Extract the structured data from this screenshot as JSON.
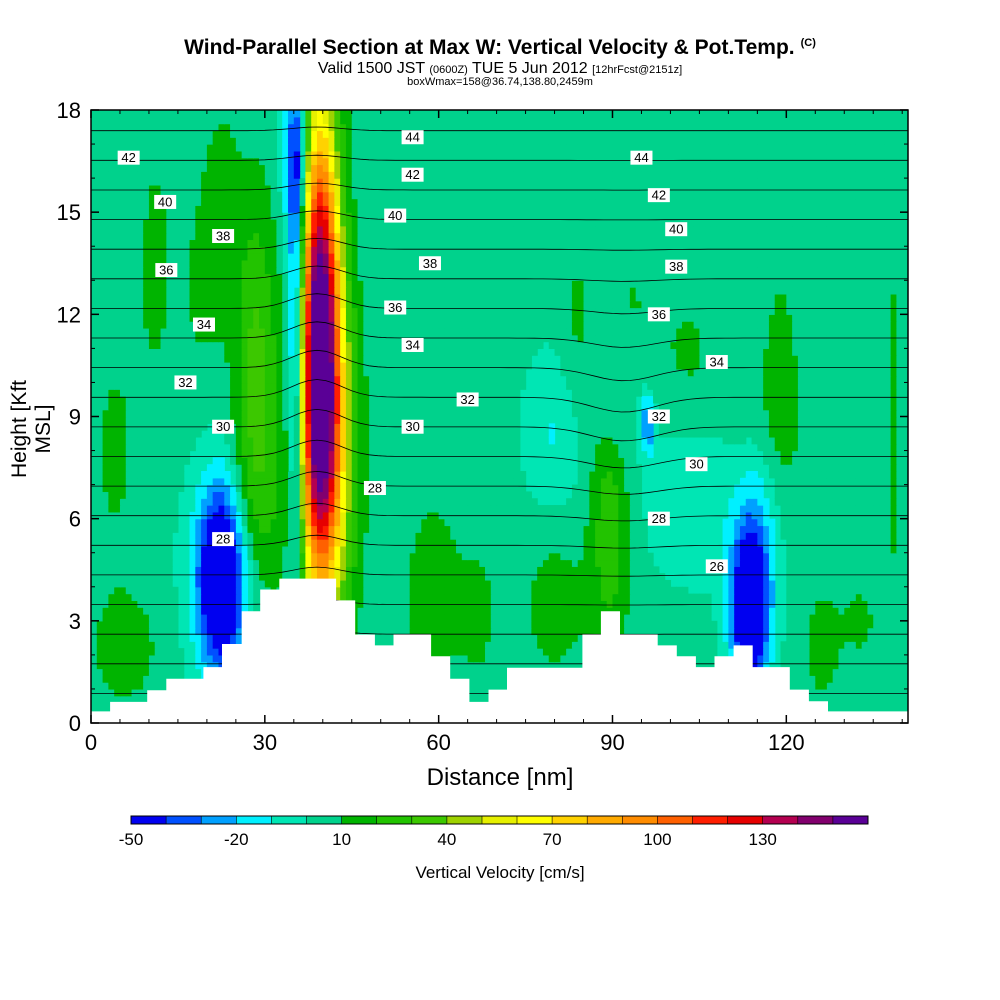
{
  "title": "Wind-Parallel Section at Max W: Vertical Velocity & Pot.Temp.",
  "copyright": "(C)",
  "subtitle_main": "Valid 1500 JST",
  "subtitle_utc": "(0600Z)",
  "subtitle_date": "TUE 5 Jun 2012",
  "subtitle_fcst": "[12hrFcst@2151z]",
  "subtitle2": "boxWmax=158@36.74,138.80,2459m",
  "colorbar_title": "Vertical Velocity [cm/s]",
  "colors": {
    "background": "#00e6b4",
    "terrain": "#ffffff",
    "contour": "#000000"
  },
  "chart_data": {
    "type": "heatmap",
    "xlabel": "Distance [nm]",
    "ylabel": "Height [Kft MSL]",
    "xlim": [
      0,
      141
    ],
    "ylim": [
      0,
      18
    ],
    "x_ticks": [
      0,
      30,
      60,
      90,
      120
    ],
    "y_ticks": [
      0,
      3,
      6,
      9,
      12,
      15,
      18
    ],
    "colorbar": {
      "levels": [
        -50,
        -40,
        -30,
        -20,
        -10,
        0,
        10,
        20,
        30,
        40,
        50,
        60,
        70,
        80,
        90,
        100,
        110,
        120,
        130,
        140,
        150
      ],
      "tick_labels": [
        "-50",
        "-20",
        "10",
        "40",
        "70",
        "100",
        "130"
      ],
      "tick_values": [
        -50,
        -20,
        10,
        40,
        70,
        100,
        130
      ],
      "colors": [
        "#0000f0",
        "#0050ff",
        "#00a0ff",
        "#00f0ff",
        "#00e6b4",
        "#00d28c",
        "#00b400",
        "#22c300",
        "#3cc800",
        "#9ed200",
        "#e6f000",
        "#ffff00",
        "#ffd200",
        "#ffaa00",
        "#ff8c00",
        "#ff6000",
        "#ff1e00",
        "#e60000",
        "#b40050",
        "#82006e",
        "#5a0096"
      ]
    },
    "terrain_profile": {
      "x": [
        0,
        3.3,
        3.3,
        9.7,
        9.7,
        13,
        13,
        19.4,
        19.4,
        22.6,
        22.6,
        26,
        26,
        29.2,
        29.2,
        32.5,
        32.5,
        42.3,
        42.3,
        45.6,
        45.6,
        49,
        49,
        52.2,
        52.2,
        58.7,
        58.7,
        62,
        62,
        65.3,
        65.3,
        68.6,
        68.6,
        71.8,
        71.8,
        84.8,
        84.8,
        88,
        88,
        91.3,
        91.3,
        97.8,
        97.8,
        101.1,
        101.1,
        104.4,
        104.4,
        107.6,
        107.6,
        110.9,
        110.9,
        114.2,
        114.2,
        120.6,
        120.6,
        123.9,
        123.9,
        127.2,
        127.2,
        133.7,
        133.7,
        141
      ],
      "height": [
        0.34,
        0.34,
        0.62,
        0.62,
        0.96,
        0.96,
        1.3,
        1.3,
        1.64,
        1.64,
        2.32,
        2.32,
        3.28,
        3.28,
        3.92,
        3.92,
        4.24,
        4.24,
        3.6,
        3.6,
        2.6,
        2.6,
        2.28,
        2.28,
        2.6,
        2.6,
        1.96,
        1.96,
        1.3,
        1.3,
        0.62,
        0.62,
        0.98,
        0.98,
        1.62,
        1.62,
        2.6,
        2.6,
        3.28,
        3.28,
        2.6,
        2.6,
        2.28,
        2.28,
        1.96,
        1.96,
        1.64,
        1.64,
        1.96,
        1.96,
        2.28,
        2.28,
        1.64,
        1.64,
        0.98,
        0.98,
        0.64,
        0.64,
        0.34,
        0.34,
        0.34,
        0.34
      ]
    },
    "velocity_features": [
      {
        "x": 39.5,
        "y": 11.5,
        "sx": 2.4,
        "sy": 4.6,
        "value": 150
      },
      {
        "x": 40.5,
        "y": 7.8,
        "sx": 3.5,
        "sy": 3.6,
        "value": 60
      },
      {
        "x": 35.5,
        "y": 11,
        "sx": 1.2,
        "sy": 5.5,
        "value": -60
      },
      {
        "x": 35.2,
        "y": 16.5,
        "sx": 1.6,
        "sy": 1.5,
        "value": -30
      },
      {
        "x": 22.5,
        "y": 4.3,
        "sx": 2.8,
        "sy": 1.9,
        "value": -75
      },
      {
        "x": 21.5,
        "y": 5.5,
        "sx": 4.5,
        "sy": 2.6,
        "value": -15
      },
      {
        "x": 113.5,
        "y": 3.3,
        "sx": 2.2,
        "sy": 1.6,
        "value": -70
      },
      {
        "x": 115,
        "y": 5,
        "sx": 2.5,
        "sy": 2.3,
        "value": -20
      },
      {
        "x": 91,
        "y": 9.5,
        "sx": 3,
        "sy": 1.6,
        "value": -17
      },
      {
        "x": 80,
        "y": 8.5,
        "sx": 3.5,
        "sy": 1.6,
        "value": -14
      },
      {
        "x": 96,
        "y": 8.8,
        "sx": 0.8,
        "sy": 0.6,
        "value": -35
      },
      {
        "x": 105,
        "y": 7,
        "sx": 7,
        "sy": 1.8,
        "value": -14
      },
      {
        "x": 28.5,
        "y": 10.5,
        "sx": 2.6,
        "sy": 3.5,
        "value": 30
      },
      {
        "x": 26,
        "y": 6.3,
        "sx": 6,
        "sy": 2,
        "value": 15
      },
      {
        "x": 89.5,
        "y": 6,
        "sx": 2.4,
        "sy": 2.8,
        "value": 25
      },
      {
        "x": 80,
        "y": 3.5,
        "sx": 4,
        "sy": 1.6,
        "value": 12
      },
      {
        "x": 93,
        "y": 11,
        "sx": 3,
        "sy": 2.5,
        "value": 10
      },
      {
        "x": 6,
        "y": 2.2,
        "sx": 4.5,
        "sy": 1.3,
        "value": 12
      },
      {
        "x": 4,
        "y": 8,
        "sx": 3,
        "sy": 2.5,
        "value": 9
      },
      {
        "x": 11,
        "y": 13.5,
        "sx": 2.5,
        "sy": 3.2,
        "value": 9
      },
      {
        "x": 22.5,
        "y": 15.5,
        "sx": 2.5,
        "sy": 2.5,
        "value": 9
      },
      {
        "x": 19,
        "y": 12.5,
        "sx": 3,
        "sy": 2.5,
        "value": 8
      },
      {
        "x": 59,
        "y": 3.8,
        "sx": 3.8,
        "sy": 2.3,
        "value": 12
      },
      {
        "x": 67,
        "y": 3.2,
        "sx": 2.5,
        "sy": 1.6,
        "value": 9
      },
      {
        "x": 84,
        "y": 11.5,
        "sx": 2.2,
        "sy": 2.3,
        "value": 9
      },
      {
        "x": 103,
        "y": 10.5,
        "sx": 4.5,
        "sy": 2,
        "value": 9
      },
      {
        "x": 119,
        "y": 10.5,
        "sx": 2.5,
        "sy": 2.8,
        "value": 9
      },
      {
        "x": 126,
        "y": 2.3,
        "sx": 2.5,
        "sy": 1.5,
        "value": 10
      },
      {
        "x": 138.5,
        "y": 9,
        "sx": 1,
        "sy": 5,
        "value": 9
      },
      {
        "x": 115,
        "y": 8.5,
        "sx": 6,
        "sy": 1.6,
        "value": 8
      },
      {
        "x": 133,
        "y": 3,
        "sx": 3,
        "sy": 1.3,
        "value": 8
      }
    ],
    "theta_contour_labels": [
      {
        "text": "44",
        "x": 55.5,
        "y": 17.2
      },
      {
        "text": "44",
        "x": 95,
        "y": 16.6
      },
      {
        "text": "42",
        "x": 6.5,
        "y": 16.6
      },
      {
        "text": "42",
        "x": 55.5,
        "y": 16.1
      },
      {
        "text": "42",
        "x": 98,
        "y": 15.5
      },
      {
        "text": "40",
        "x": 12.8,
        "y": 15.3
      },
      {
        "text": "40",
        "x": 52.5,
        "y": 14.9
      },
      {
        "text": "40",
        "x": 101,
        "y": 14.5
      },
      {
        "text": "38",
        "x": 22.8,
        "y": 14.3
      },
      {
        "text": "38",
        "x": 58.5,
        "y": 13.5
      },
      {
        "text": "38",
        "x": 101,
        "y": 13.4
      },
      {
        "text": "36",
        "x": 13,
        "y": 13.3
      },
      {
        "text": "36",
        "x": 52.5,
        "y": 12.2
      },
      {
        "text": "36",
        "x": 98,
        "y": 12.0
      },
      {
        "text": "34",
        "x": 19.5,
        "y": 11.7
      },
      {
        "text": "34",
        "x": 55.5,
        "y": 11.1
      },
      {
        "text": "34",
        "x": 108,
        "y": 10.6
      },
      {
        "text": "32",
        "x": 16.3,
        "y": 10.0
      },
      {
        "text": "32",
        "x": 65,
        "y": 9.5
      },
      {
        "text": "32",
        "x": 98,
        "y": 9.0
      },
      {
        "text": "30",
        "x": 22.8,
        "y": 8.7
      },
      {
        "text": "30",
        "x": 55.5,
        "y": 8.7
      },
      {
        "text": "30",
        "x": 104.5,
        "y": 7.6
      },
      {
        "text": "28",
        "x": 22.8,
        "y": 5.4
      },
      {
        "text": "28",
        "x": 49,
        "y": 6.9
      },
      {
        "text": "28",
        "x": 98,
        "y": 6.0
      },
      {
        "text": "26",
        "x": 108,
        "y": 4.6
      }
    ]
  }
}
